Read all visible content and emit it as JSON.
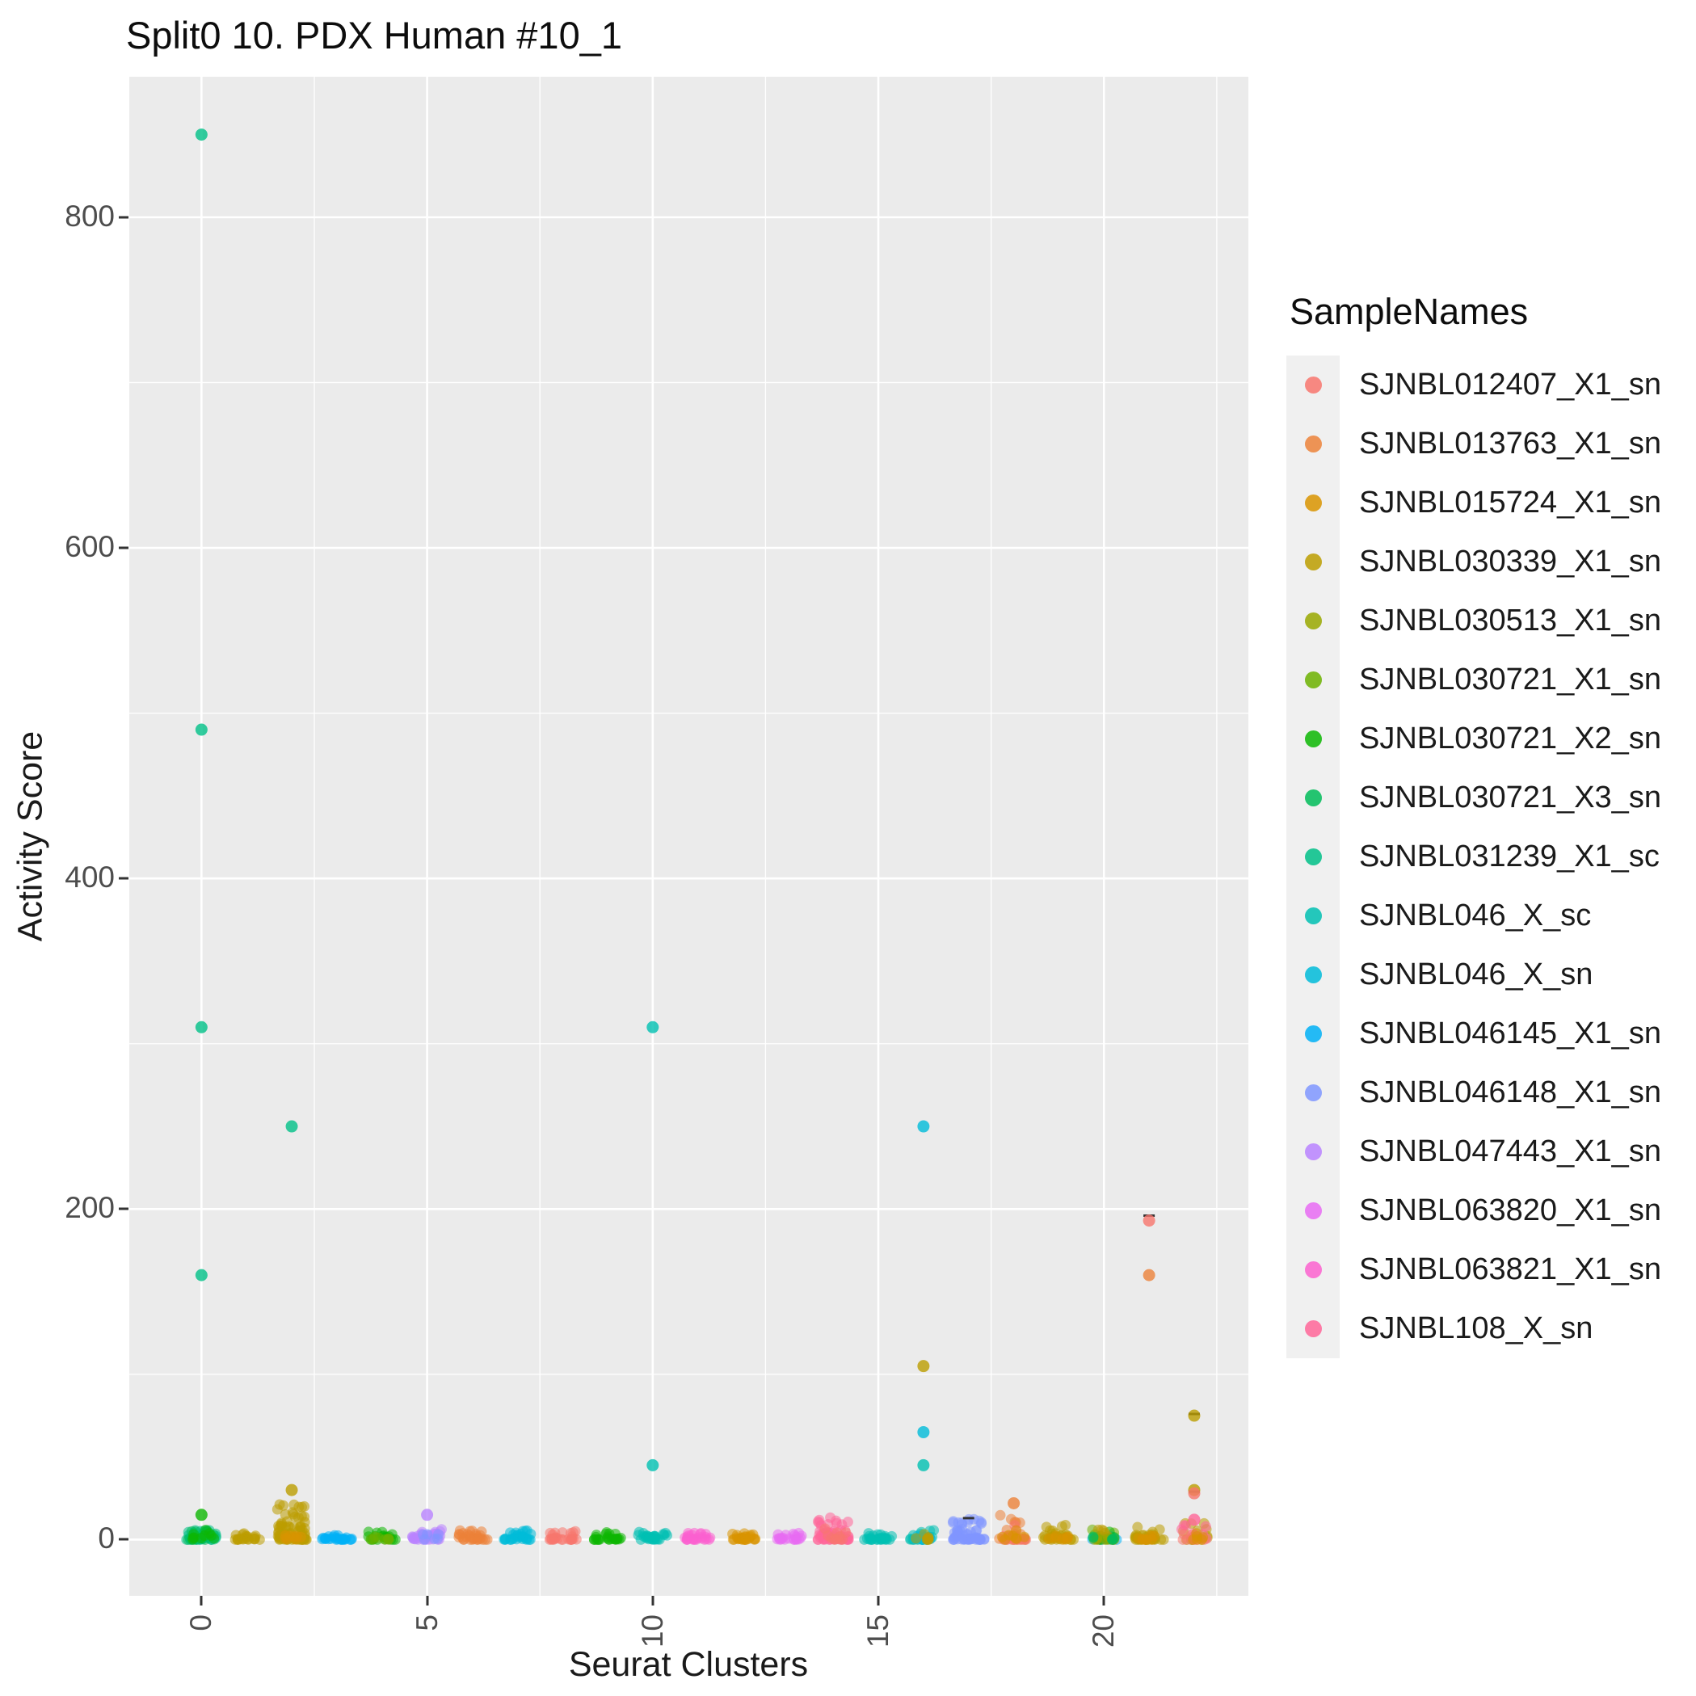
{
  "title": "Split0 10. PDX Human #10_1",
  "panel_bg": "#EBEBEB",
  "grid_color": "#FFFFFF",
  "axes": {
    "x": {
      "label": "Seurat Clusters",
      "ticks": [
        0,
        5,
        10,
        15,
        20
      ],
      "minor": [
        2.5,
        7.5,
        12.5,
        17.5,
        22.5
      ],
      "domain": [
        -1.6,
        23.2
      ]
    },
    "y": {
      "label": "Activity Score",
      "ticks": [
        0,
        200,
        400,
        600,
        800
      ],
      "minor": [
        100,
        300,
        500,
        700
      ],
      "domain": [
        -34,
        885
      ]
    }
  },
  "legend": {
    "title": "SampleNames",
    "items": [
      {
        "label": "SJNBL012407_X1_sn",
        "color": "#F8766D"
      },
      {
        "label": "SJNBL013763_X1_sn",
        "color": "#EC8239"
      },
      {
        "label": "SJNBL015724_X1_sn",
        "color": "#D99400"
      },
      {
        "label": "SJNBL030339_X1_sn",
        "color": "#BC9D00"
      },
      {
        "label": "SJNBL030513_X1_sn",
        "color": "#99A800"
      },
      {
        "label": "SJNBL030721_X1_sn",
        "color": "#6CB100"
      },
      {
        "label": "SJNBL030721_X2_sn",
        "color": "#0CB702"
      },
      {
        "label": "SJNBL030721_X3_sn",
        "color": "#00BC59"
      },
      {
        "label": "SJNBL031239_X1_sc",
        "color": "#00C087"
      },
      {
        "label": "SJNBL046_X_sc",
        "color": "#00C0B2"
      },
      {
        "label": "SJNBL046_X_sn",
        "color": "#00BBD9"
      },
      {
        "label": "SJNBL046145_X1_sn",
        "color": "#00B0F6"
      },
      {
        "label": "SJNBL046148_X1_sn",
        "color": "#7F96FF"
      },
      {
        "label": "SJNBL047443_X1_sn",
        "color": "#B983FF"
      },
      {
        "label": "SJNBL063820_X1_sn",
        "color": "#E76BF3"
      },
      {
        "label": "SJNBL063821_X1_sn",
        "color": "#FC61CF"
      },
      {
        "label": "SJNBL108_X_sn",
        "color": "#FF6699"
      }
    ]
  },
  "chart_data": {
    "type": "scatter",
    "title": "Split0 10. PDX Human #10_1",
    "xlabel": "Seurat Clusters",
    "ylabel": "Activity Score",
    "legend_title": "SampleNames",
    "x_ticks": [
      0,
      5,
      10,
      15,
      20
    ],
    "y_ticks": [
      0,
      200,
      400,
      600,
      800
    ],
    "x_domain": [
      -1.6,
      23.2
    ],
    "y_domain": [
      -34,
      885
    ],
    "grid": true,
    "legend_position": "right",
    "point_alpha": 0.55,
    "seed": 7,
    "blobs": [
      {
        "c": 0,
        "s": "SJNBL031239_X1_sc",
        "n": 45,
        "ym": 6,
        "xs": 0.34
      },
      {
        "c": 0,
        "s": "SJNBL030721_X3_sn",
        "n": 12,
        "ym": 5,
        "xs": 0.3
      },
      {
        "c": 0,
        "s": "SJNBL030721_X2_sn",
        "n": 10,
        "ym": 6,
        "xs": 0.3
      },
      {
        "c": 1,
        "s": "SJNBL030339_X1_sn",
        "n": 22,
        "ym": 4,
        "xs": 0.3
      },
      {
        "c": 2,
        "s": "SJNBL030339_X1_sn",
        "n": 75,
        "ym": 22,
        "xs": 0.34
      },
      {
        "c": 2,
        "s": "SJNBL015724_X1_sn",
        "n": 8,
        "ym": 6,
        "xs": 0.28
      },
      {
        "c": 3,
        "s": "SJNBL046145_X1_sn",
        "n": 26,
        "ym": 3,
        "xs": 0.33
      },
      {
        "c": 4,
        "s": "SJNBL030721_X2_sn",
        "n": 22,
        "ym": 5,
        "xs": 0.3
      },
      {
        "c": 4,
        "s": "SJNBL030721_X1_sn",
        "n": 8,
        "ym": 4,
        "xs": 0.28
      },
      {
        "c": 5,
        "s": "SJNBL047443_X1_sn",
        "n": 30,
        "ym": 7,
        "xs": 0.33
      },
      {
        "c": 5,
        "s": "SJNBL046148_X1_sn",
        "n": 6,
        "ym": 4,
        "xs": 0.28
      },
      {
        "c": 6,
        "s": "SJNBL013763_X1_sn",
        "n": 30,
        "ym": 6,
        "xs": 0.34
      },
      {
        "c": 7,
        "s": "SJNBL046_X_sn",
        "n": 28,
        "ym": 6,
        "xs": 0.33
      },
      {
        "c": 8,
        "s": "SJNBL012407_X1_sn",
        "n": 26,
        "ym": 5,
        "xs": 0.32
      },
      {
        "c": 9,
        "s": "SJNBL030721_X2_sn",
        "n": 24,
        "ym": 5,
        "xs": 0.3
      },
      {
        "c": 10,
        "s": "SJNBL046_X_sc",
        "n": 28,
        "ym": 5,
        "xs": 0.32
      },
      {
        "c": 11,
        "s": "SJNBL063821_X1_sn",
        "n": 26,
        "ym": 4,
        "xs": 0.32
      },
      {
        "c": 12,
        "s": "SJNBL015724_X1_sn",
        "n": 28,
        "ym": 4,
        "xs": 0.3
      },
      {
        "c": 13,
        "s": "SJNBL063820_X1_sn",
        "n": 22,
        "ym": 5,
        "xs": 0.3
      },
      {
        "c": 14,
        "s": "SJNBL108_X_sn",
        "n": 55,
        "ym": 14,
        "xs": 0.35
      },
      {
        "c": 14,
        "s": "SJNBL012407_X1_sn",
        "n": 10,
        "ym": 10,
        "xs": 0.3
      },
      {
        "c": 15,
        "s": "SJNBL046_X_sc",
        "n": 28,
        "ym": 4,
        "xs": 0.32
      },
      {
        "c": 16,
        "s": "SJNBL046_X_sc",
        "n": 18,
        "ym": 7,
        "xs": 0.3
      },
      {
        "c": 16,
        "s": "SJNBL046_X_sn",
        "n": 10,
        "ym": 6,
        "xs": 0.28
      },
      {
        "c": 16,
        "s": "SJNBL030339_X1_sn",
        "n": 8,
        "ym": 4,
        "xs": 0.25
      },
      {
        "c": 17,
        "s": "SJNBL046148_X1_sn",
        "n": 55,
        "ym": 13,
        "xs": 0.35
      },
      {
        "c": 18,
        "s": "SJNBL013763_X1_sn",
        "n": 22,
        "ym": 15,
        "xs": 0.32
      },
      {
        "c": 18,
        "s": "SJNBL012407_X1_sn",
        "n": 14,
        "ym": 9,
        "xs": 0.3
      },
      {
        "c": 18,
        "s": "SJNBL015724_X1_sn",
        "n": 8,
        "ym": 6,
        "xs": 0.28
      },
      {
        "c": 19,
        "s": "SJNBL030339_X1_sn",
        "n": 32,
        "ym": 9,
        "xs": 0.34
      },
      {
        "c": 19,
        "s": "SJNBL015724_X1_sn",
        "n": 8,
        "ym": 5,
        "xs": 0.3
      },
      {
        "c": 20,
        "s": "SJNBL030721_X1_sn",
        "n": 10,
        "ym": 6,
        "xs": 0.3
      },
      {
        "c": 20,
        "s": "SJNBL046145_X1_sn",
        "n": 10,
        "ym": 5,
        "xs": 0.3
      },
      {
        "c": 20,
        "s": "SJNBL030721_X2_sn",
        "n": 8,
        "ym": 5,
        "xs": 0.28
      },
      {
        "c": 20,
        "s": "SJNBL030339_X1_sn",
        "n": 8,
        "ym": 6,
        "xs": 0.28
      },
      {
        "c": 20,
        "s": "SJNBL030513_X1_sn",
        "n": 6,
        "ym": 5,
        "xs": 0.26
      },
      {
        "c": 20,
        "s": "SJNBL030721_X3_sn",
        "n": 6,
        "ym": 4,
        "xs": 0.26
      },
      {
        "c": 21,
        "s": "SJNBL030339_X1_sn",
        "n": 30,
        "ym": 8,
        "xs": 0.33
      },
      {
        "c": 21,
        "s": "SJNBL015724_X1_sn",
        "n": 8,
        "ym": 5,
        "xs": 0.28
      },
      {
        "c": 22,
        "s": "SJNBL030339_X1_sn",
        "n": 14,
        "ym": 10,
        "xs": 0.3
      },
      {
        "c": 22,
        "s": "SJNBL108_X_sn",
        "n": 10,
        "ym": 12,
        "xs": 0.28
      },
      {
        "c": 22,
        "s": "SJNBL012407_X1_sn",
        "n": 8,
        "ym": 8,
        "xs": 0.26
      },
      {
        "c": 22,
        "s": "SJNBL015724_X1_sn",
        "n": 6,
        "ym": 5,
        "xs": 0.26
      }
    ],
    "outliers": [
      {
        "c": 0,
        "y": 850,
        "s": "SJNBL031239_X1_sc"
      },
      {
        "c": 0,
        "y": 490,
        "s": "SJNBL031239_X1_sc"
      },
      {
        "c": 0,
        "y": 310,
        "s": "SJNBL031239_X1_sc"
      },
      {
        "c": 0,
        "y": 160,
        "s": "SJNBL031239_X1_sc"
      },
      {
        "c": 0,
        "y": 15,
        "s": "SJNBL030721_X2_sn"
      },
      {
        "c": 2,
        "y": 250,
        "s": "SJNBL031239_X1_sc"
      },
      {
        "c": 2,
        "y": 30,
        "s": "SJNBL030339_X1_sn"
      },
      {
        "c": 5,
        "y": 15,
        "s": "SJNBL047443_X1_sn"
      },
      {
        "c": 10,
        "y": 310,
        "s": "SJNBL046_X_sc"
      },
      {
        "c": 10,
        "y": 45,
        "s": "SJNBL046_X_sc"
      },
      {
        "c": 16,
        "y": 250,
        "s": "SJNBL046_X_sn"
      },
      {
        "c": 16,
        "y": 105,
        "s": "SJNBL030339_X1_sn"
      },
      {
        "c": 16,
        "y": 65,
        "s": "SJNBL046_X_sn"
      },
      {
        "c": 16,
        "y": 45,
        "s": "SJNBL046_X_sc"
      },
      {
        "c": 18,
        "y": 22,
        "s": "SJNBL013763_X1_sn"
      },
      {
        "c": 21,
        "y": 193,
        "s": "SJNBL012407_X1_sn"
      },
      {
        "c": 21,
        "y": 160,
        "s": "SJNBL013763_X1_sn"
      },
      {
        "c": 22,
        "y": 75,
        "s": "SJNBL030339_X1_sn"
      },
      {
        "c": 22,
        "y": 30,
        "s": "SJNBL030339_X1_sn"
      },
      {
        "c": 22,
        "y": 28,
        "s": "SJNBL012407_X1_sn"
      },
      {
        "c": 22,
        "y": 12,
        "s": "SJNBL108_X_sn"
      }
    ],
    "dashes": [
      {
        "c": 21,
        "y": 196
      },
      {
        "c": 22,
        "y": 76
      },
      {
        "c": 22,
        "y": 29
      },
      {
        "c": 17,
        "y": 13
      }
    ]
  }
}
